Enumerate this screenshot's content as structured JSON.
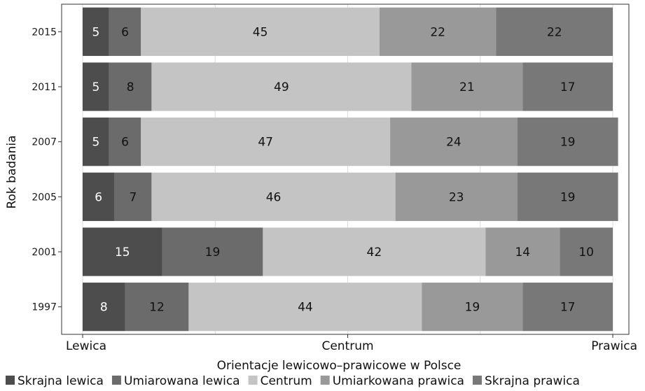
{
  "chart_data": {
    "type": "bar",
    "orientation": "horizontal",
    "stacked": true,
    "percent": true,
    "categories": [
      "2015",
      "2011",
      "2007",
      "2005",
      "2001",
      "1997"
    ],
    "series": [
      {
        "name": "Skrajna lewica",
        "color": "#4d4d4d",
        "label_color": "#ffffff",
        "values": [
          5,
          5,
          5,
          6,
          15,
          8
        ]
      },
      {
        "name": "Umiarowana lewica",
        "color": "#6b6b6b",
        "label_color": "#111111",
        "values": [
          6,
          8,
          6,
          7,
          19,
          12
        ]
      },
      {
        "name": "Centrum",
        "color": "#c4c4c4",
        "label_color": "#111111",
        "values": [
          45,
          49,
          47,
          46,
          42,
          44
        ]
      },
      {
        "name": "Umiarkowana prawica",
        "color": "#999999",
        "label_color": "#111111",
        "values": [
          22,
          21,
          24,
          23,
          14,
          19
        ]
      },
      {
        "name": "Skrajna prawica",
        "color": "#787878",
        "label_color": "#111111",
        "values": [
          22,
          17,
          19,
          19,
          10,
          17
        ]
      }
    ],
    "x_ticks": [
      "Lewica",
      "Centrum",
      "Prawica"
    ],
    "xlabel": "Orientacje lewicowo–prawicowe w Polsce",
    "ylabel": "Rok badania",
    "xlim": [
      0,
      100
    ],
    "grid": true,
    "legend_position": "bottom",
    "colors": {
      "background": "#ffffff",
      "grid": "#dcdcdc",
      "frame": "#333333"
    }
  }
}
